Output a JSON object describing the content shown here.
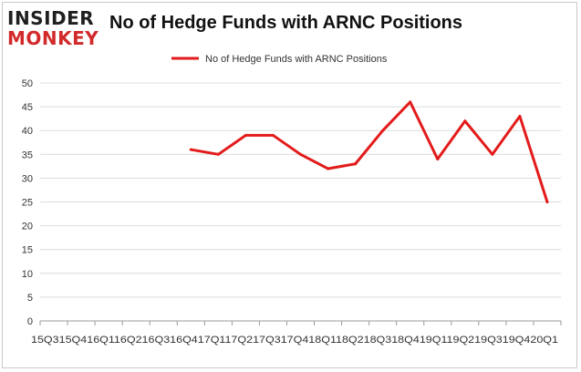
{
  "logo": {
    "line1": "INSIDER",
    "line2": "MONKEY"
  },
  "chart_data": {
    "type": "line",
    "title": "No of Hedge Funds with ARNC Positions",
    "xlabel": "",
    "ylabel": "",
    "categories": [
      "15Q3",
      "15Q4",
      "16Q1",
      "16Q2",
      "16Q3",
      "16Q4",
      "17Q1",
      "17Q2",
      "17Q3",
      "17Q4",
      "18Q1",
      "18Q2",
      "18Q3",
      "18Q4",
      "19Q1",
      "19Q2",
      "19Q3",
      "19Q4",
      "20Q1"
    ],
    "x_tick_text": "15Q315Q416Q116Q216Q316Q417Q117Q217Q317Q418Q118Q218Q318Q419Q119Q219Q319Q420Q1",
    "series": [
      {
        "name": "No of Hedge Funds with ARNC Positions",
        "color": "#e31b1b",
        "values": [
          null,
          null,
          null,
          null,
          null,
          36,
          35,
          39,
          39,
          35,
          32,
          33,
          40,
          46,
          34,
          42,
          35,
          43,
          25
        ]
      }
    ],
    "ylim": [
      0,
      50
    ],
    "yticks": [
      0,
      5,
      10,
      15,
      20,
      25,
      30,
      35,
      40,
      45,
      50
    ],
    "grid": "horizontal",
    "legend": "top-center"
  }
}
